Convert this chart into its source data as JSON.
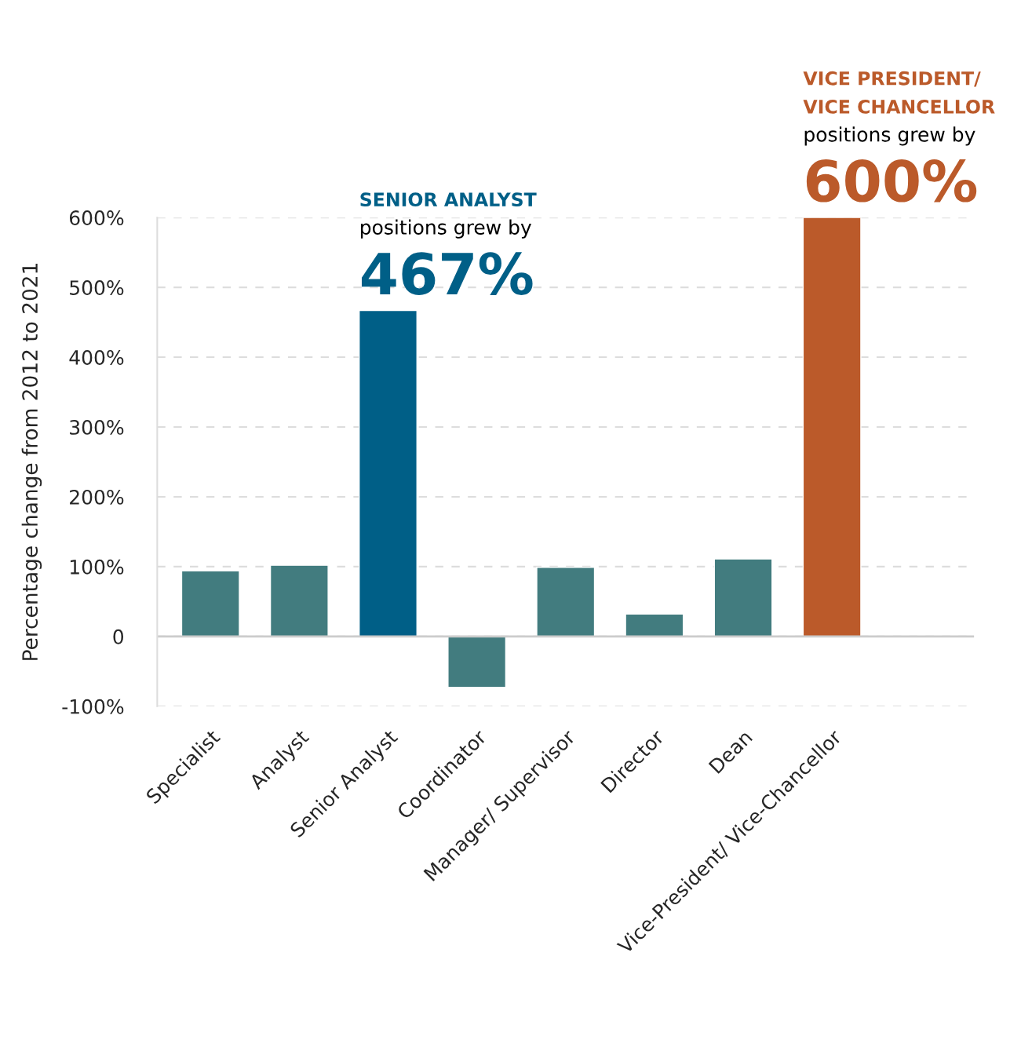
{
  "chart_data": {
    "type": "bar",
    "ylabel": "Percentage change from 2012 to 2021",
    "categories": [
      "Specialist",
      "Analyst",
      "Senior Analyst",
      "Coordinator",
      "Manager/ Supervisor",
      "Director",
      "Dean",
      "Vice-President/ Vice-Chancellor"
    ],
    "values": [
      94,
      102,
      467,
      -73,
      99,
      32,
      111,
      600
    ],
    "colors": [
      "#427c7f",
      "#427c7f",
      "#005f87",
      "#427c7f",
      "#427c7f",
      "#427c7f",
      "#427c7f",
      "#bb5a2a"
    ],
    "ylim": [
      -100,
      600
    ],
    "yticks": [
      {
        "value": -100,
        "label": "-100%"
      },
      0,
      {
        "value": 100,
        "label": "100%"
      },
      {
        "value": 200,
        "label": "200%"
      },
      {
        "value": 300,
        "label": "300%"
      },
      {
        "value": 400,
        "label": "400%"
      },
      {
        "value": 500,
        "label": "500%"
      },
      {
        "value": 600,
        "label": "600%"
      }
    ],
    "grid": "y",
    "annotations": [
      {
        "text": "SENIOR ANALYST\npositions grew by\n467%",
        "x": "Senior Analyst",
        "y": 467
      },
      {
        "text": "VICE PRESIDENT/\nVICE CHANCELLOR\npositions grew by\n600%",
        "x": "Vice-President/ Vice-Chancellor",
        "y": 600
      }
    ]
  }
}
